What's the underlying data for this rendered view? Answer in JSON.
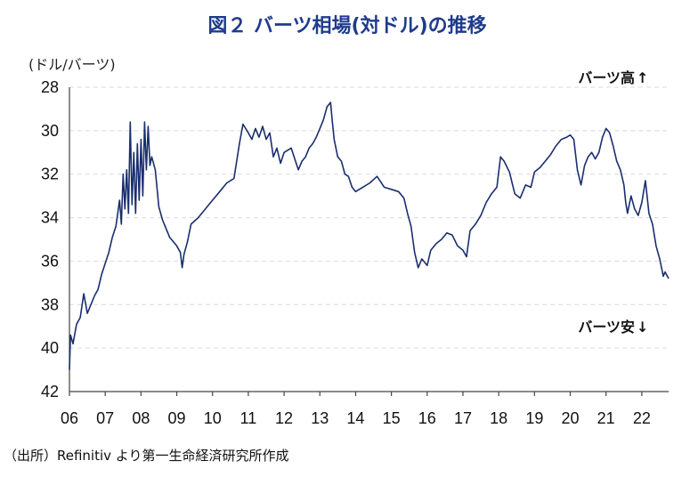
{
  "chart_data": {
    "type": "line",
    "title": "図２ バーツ相場(対ドル)の推移",
    "ylabel": "(ドル/バーツ)",
    "y_inverted": true,
    "ylim": [
      28,
      42
    ],
    "yticks": [
      28,
      30,
      32,
      34,
      36,
      38,
      40,
      42
    ],
    "xlim": [
      2006.0,
      2022.75
    ],
    "xticks": [
      {
        "value": 2006,
        "label": "06"
      },
      {
        "value": 2007,
        "label": "07"
      },
      {
        "value": 2008,
        "label": "08"
      },
      {
        "value": 2009,
        "label": "09"
      },
      {
        "value": 2010,
        "label": "10"
      },
      {
        "value": 2011,
        "label": "11"
      },
      {
        "value": 2012,
        "label": "12"
      },
      {
        "value": 2013,
        "label": "13"
      },
      {
        "value": 2014,
        "label": "14"
      },
      {
        "value": 2015,
        "label": "15"
      },
      {
        "value": 2016,
        "label": "16"
      },
      {
        "value": 2017,
        "label": "17"
      },
      {
        "value": 2018,
        "label": "18"
      },
      {
        "value": 2019,
        "label": "19"
      },
      {
        "value": 2020,
        "label": "20"
      },
      {
        "value": 2021,
        "label": "21"
      },
      {
        "value": 2022,
        "label": "22"
      }
    ],
    "grid": true,
    "annotations": {
      "up": "バーツ高",
      "up_arrow": "↑",
      "down": "バーツ安",
      "down_arrow": "↓"
    },
    "source": "（出所）Refinitiv より第一生命経済研究所作成",
    "series": [
      {
        "color": "#1a2e6e",
        "points": [
          [
            2006.0,
            41.0
          ],
          [
            2006.03,
            39.4
          ],
          [
            2006.1,
            39.8
          ],
          [
            2006.2,
            38.9
          ],
          [
            2006.3,
            38.6
          ],
          [
            2006.4,
            37.5
          ],
          [
            2006.5,
            38.4
          ],
          [
            2006.6,
            38.0
          ],
          [
            2006.7,
            37.6
          ],
          [
            2006.8,
            37.3
          ],
          [
            2006.9,
            36.6
          ],
          [
            2007.0,
            36.1
          ],
          [
            2007.1,
            35.6
          ],
          [
            2007.2,
            34.9
          ],
          [
            2007.3,
            34.4
          ],
          [
            2007.4,
            33.2
          ],
          [
            2007.45,
            34.3
          ],
          [
            2007.5,
            32.0
          ],
          [
            2007.55,
            33.6
          ],
          [
            2007.6,
            31.8
          ],
          [
            2007.65,
            33.8
          ],
          [
            2007.7,
            29.6
          ],
          [
            2007.75,
            33.4
          ],
          [
            2007.8,
            31.0
          ],
          [
            2007.85,
            33.8
          ],
          [
            2007.9,
            30.6
          ],
          [
            2007.95,
            33.2
          ],
          [
            2008.0,
            30.4
          ],
          [
            2008.05,
            33.0
          ],
          [
            2008.1,
            29.6
          ],
          [
            2008.15,
            31.8
          ],
          [
            2008.2,
            29.8
          ],
          [
            2008.25,
            31.6
          ],
          [
            2008.3,
            31.2
          ],
          [
            2008.4,
            31.8
          ],
          [
            2008.5,
            33.5
          ],
          [
            2008.6,
            34.1
          ],
          [
            2008.7,
            34.5
          ],
          [
            2008.8,
            34.9
          ],
          [
            2008.9,
            35.1
          ],
          [
            2009.0,
            35.3
          ],
          [
            2009.1,
            35.6
          ],
          [
            2009.15,
            36.3
          ],
          [
            2009.2,
            35.7
          ],
          [
            2009.3,
            35.1
          ],
          [
            2009.4,
            34.3
          ],
          [
            2009.6,
            34.0
          ],
          [
            2009.8,
            33.6
          ],
          [
            2010.0,
            33.2
          ],
          [
            2010.2,
            32.8
          ],
          [
            2010.4,
            32.4
          ],
          [
            2010.6,
            32.2
          ],
          [
            2010.75,
            30.6
          ],
          [
            2010.85,
            29.7
          ],
          [
            2011.0,
            30.1
          ],
          [
            2011.1,
            30.4
          ],
          [
            2011.2,
            29.9
          ],
          [
            2011.3,
            30.3
          ],
          [
            2011.4,
            29.8
          ],
          [
            2011.5,
            30.4
          ],
          [
            2011.6,
            30.1
          ],
          [
            2011.7,
            31.2
          ],
          [
            2011.8,
            30.8
          ],
          [
            2011.9,
            31.5
          ],
          [
            2012.0,
            31.0
          ],
          [
            2012.1,
            30.9
          ],
          [
            2012.2,
            30.8
          ],
          [
            2012.3,
            31.3
          ],
          [
            2012.4,
            31.8
          ],
          [
            2012.5,
            31.4
          ],
          [
            2012.6,
            31.2
          ],
          [
            2012.7,
            30.8
          ],
          [
            2012.8,
            30.6
          ],
          [
            2012.9,
            30.3
          ],
          [
            2013.0,
            29.9
          ],
          [
            2013.1,
            29.5
          ],
          [
            2013.2,
            28.9
          ],
          [
            2013.3,
            28.7
          ],
          [
            2013.35,
            29.6
          ],
          [
            2013.4,
            30.4
          ],
          [
            2013.5,
            31.2
          ],
          [
            2013.6,
            31.4
          ],
          [
            2013.7,
            32.0
          ],
          [
            2013.8,
            32.1
          ],
          [
            2013.9,
            32.6
          ],
          [
            2014.0,
            32.8
          ],
          [
            2014.2,
            32.6
          ],
          [
            2014.4,
            32.4
          ],
          [
            2014.6,
            32.1
          ],
          [
            2014.8,
            32.6
          ],
          [
            2015.0,
            32.7
          ],
          [
            2015.2,
            32.8
          ],
          [
            2015.35,
            33.1
          ],
          [
            2015.45,
            33.8
          ],
          [
            2015.55,
            34.4
          ],
          [
            2015.65,
            35.6
          ],
          [
            2015.75,
            36.3
          ],
          [
            2015.85,
            35.9
          ],
          [
            2016.0,
            36.2
          ],
          [
            2016.1,
            35.5
          ],
          [
            2016.25,
            35.2
          ],
          [
            2016.4,
            35.0
          ],
          [
            2016.55,
            34.7
          ],
          [
            2016.7,
            34.8
          ],
          [
            2016.85,
            35.3
          ],
          [
            2017.0,
            35.5
          ],
          [
            2017.1,
            35.8
          ],
          [
            2017.2,
            34.6
          ],
          [
            2017.35,
            34.3
          ],
          [
            2017.5,
            33.9
          ],
          [
            2017.65,
            33.3
          ],
          [
            2017.8,
            32.9
          ],
          [
            2017.95,
            32.6
          ],
          [
            2018.05,
            31.2
          ],
          [
            2018.15,
            31.4
          ],
          [
            2018.3,
            31.9
          ],
          [
            2018.45,
            32.9
          ],
          [
            2018.6,
            33.1
          ],
          [
            2018.75,
            32.5
          ],
          [
            2018.9,
            32.6
          ],
          [
            2019.0,
            31.9
          ],
          [
            2019.15,
            31.7
          ],
          [
            2019.3,
            31.4
          ],
          [
            2019.45,
            31.1
          ],
          [
            2019.6,
            30.7
          ],
          [
            2019.75,
            30.4
          ],
          [
            2019.9,
            30.3
          ],
          [
            2020.0,
            30.2
          ],
          [
            2020.1,
            30.4
          ],
          [
            2020.2,
            31.8
          ],
          [
            2020.3,
            32.5
          ],
          [
            2020.4,
            31.6
          ],
          [
            2020.5,
            31.2
          ],
          [
            2020.6,
            31.0
          ],
          [
            2020.7,
            31.3
          ],
          [
            2020.8,
            31.0
          ],
          [
            2020.9,
            30.3
          ],
          [
            2021.0,
            29.9
          ],
          [
            2021.1,
            30.1
          ],
          [
            2021.2,
            30.7
          ],
          [
            2021.3,
            31.4
          ],
          [
            2021.4,
            31.8
          ],
          [
            2021.5,
            32.5
          ],
          [
            2021.55,
            33.3
          ],
          [
            2021.6,
            33.8
          ],
          [
            2021.7,
            33.0
          ],
          [
            2021.8,
            33.6
          ],
          [
            2021.9,
            33.9
          ],
          [
            2022.0,
            33.3
          ],
          [
            2022.1,
            32.3
          ],
          [
            2022.2,
            33.8
          ],
          [
            2022.3,
            34.3
          ],
          [
            2022.4,
            35.3
          ],
          [
            2022.5,
            35.9
          ],
          [
            2022.6,
            36.7
          ],
          [
            2022.65,
            36.5
          ],
          [
            2022.75,
            36.8
          ]
        ]
      }
    ]
  }
}
